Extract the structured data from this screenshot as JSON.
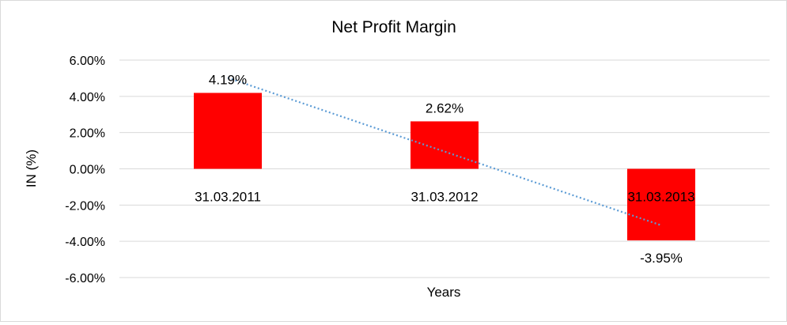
{
  "chart_data": {
    "type": "bar",
    "title": "Net Profit Margin",
    "xlabel": "Years",
    "ylabel": "IN (%)",
    "categories": [
      "31.03.2011",
      "31.03.2012",
      "31.03.2013"
    ],
    "values": [
      4.19,
      2.62,
      -3.95
    ],
    "data_labels": [
      "4.19%",
      "2.62%",
      "-3.95%"
    ],
    "ylim": [
      -6,
      6
    ],
    "yticks": [
      6,
      4,
      2,
      0,
      -2,
      -4,
      -6
    ],
    "ytick_labels": [
      "6.00%",
      "4.00%",
      "2.00%",
      "0.00%",
      "-2.00%",
      "-4.00%",
      "-6.00%"
    ],
    "grid": true,
    "legend": "none",
    "trendline": {
      "type": "linear",
      "style": "dotted"
    },
    "colors": {
      "bar": "#ff0000",
      "trendline": "#5b9bd5",
      "grid": "#d9d9d9",
      "text": "#000000"
    }
  }
}
